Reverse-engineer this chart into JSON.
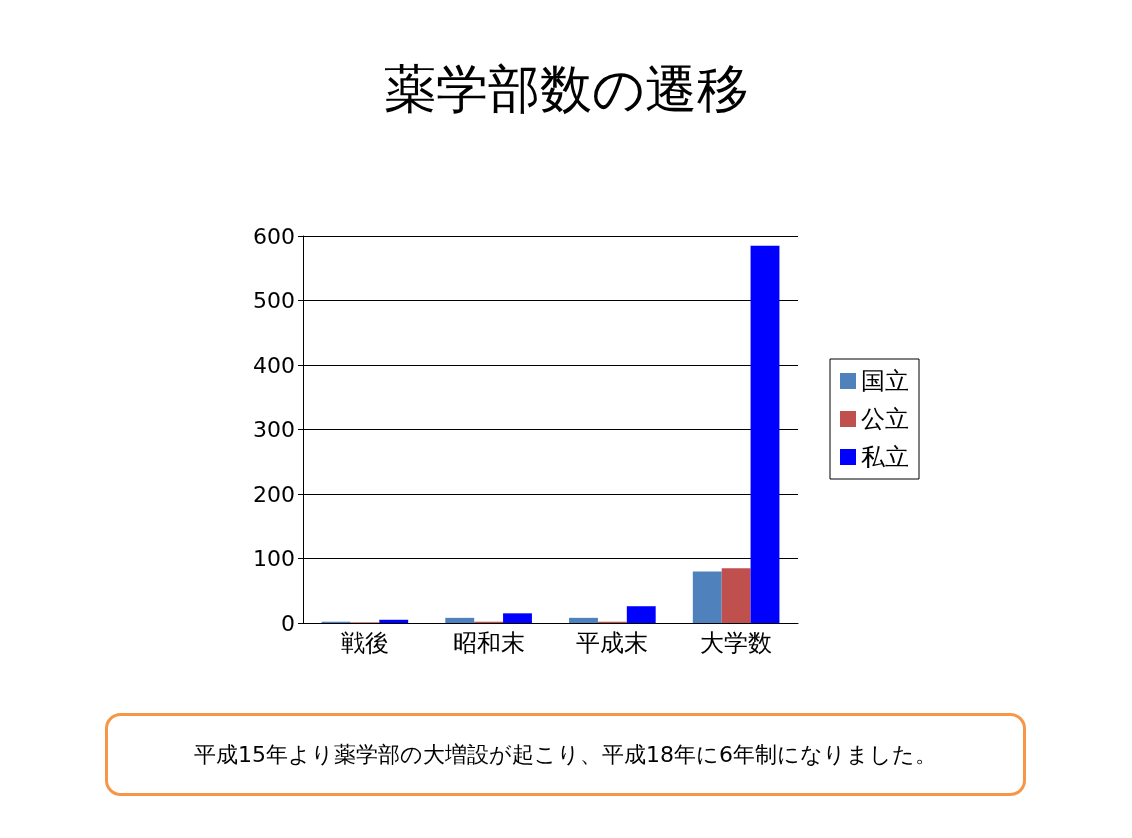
{
  "chart_data": {
    "type": "bar",
    "title": "薬学部数の遷移",
    "categories": [
      "戦後",
      "昭和末",
      "平成末",
      "大学数"
    ],
    "series": [
      {
        "name": "国立",
        "color": "#4f81bd",
        "values": [
          2,
          8,
          8,
          80
        ]
      },
      {
        "name": "公立",
        "color": "#c0504d",
        "values": [
          1,
          2,
          2,
          85
        ]
      },
      {
        "name": "私立",
        "color": "#0000ff",
        "values": [
          5,
          15,
          26,
          585
        ]
      }
    ],
    "ylim": [
      0,
      600
    ],
    "yticks": [
      0,
      100,
      200,
      300,
      400,
      500,
      600
    ],
    "grid": "y",
    "legend": "right",
    "annotations": [
      "平成15年より薬学部の大増設が起こり、平成18年に6年制になりました。"
    ]
  }
}
